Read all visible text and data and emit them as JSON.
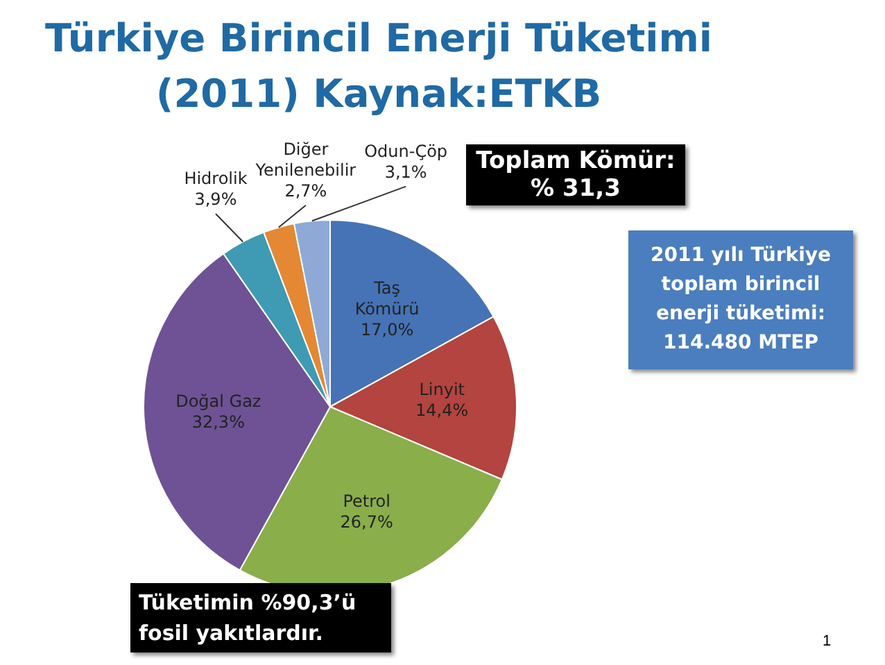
{
  "chart_data": {
    "type": "pie",
    "title": "Türkiye Birincil Enerji Tüketimi (2011) Kaynak:ETKB",
    "categories": [
      "Taş Kömürü",
      "Linyit",
      "Petrol",
      "Doğal Gaz",
      "Hidrolik",
      "Diğer Yenilenebilir",
      "Odun-Çöp"
    ],
    "values": [
      17.0,
      14.4,
      26.7,
      32.3,
      3.9,
      2.7,
      3.1
    ],
    "colors": [
      "#4573b5",
      "#b3443f",
      "#8aae4a",
      "#6e5295",
      "#3e9bb3",
      "#e48834",
      "#8fa9d6"
    ],
    "value_labels": [
      "17,0%",
      "14,4%",
      "26,7%",
      "32,3%",
      "3,9%",
      "2,7%",
      "3,1%"
    ],
    "annotations": [
      "Toplam Kömür: % 31,3",
      "2011 yılı Türkiye toplam birincil enerji tüketimi: 114.480 MTEP",
      "Tüketimin %90,3’ü fosil yakıtlardır.",
      "1"
    ]
  }
}
